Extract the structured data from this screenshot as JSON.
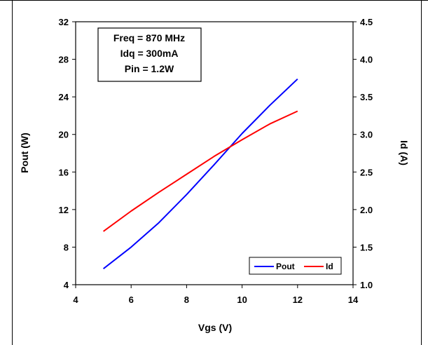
{
  "chart_data": {
    "type": "line",
    "xlabel": "Vgs (V)",
    "ylabel": "Pout (W)",
    "y2label": "Id (A)",
    "xlim": [
      4,
      14
    ],
    "ylim": [
      4,
      32
    ],
    "y2lim": [
      1.0,
      4.5
    ],
    "xticks": [
      "4",
      "6",
      "8",
      "10",
      "12",
      "14"
    ],
    "yticks": [
      "4",
      "8",
      "12",
      "16",
      "20",
      "24",
      "28",
      "32"
    ],
    "y2ticks": [
      "1.0",
      "1.5",
      "2.0",
      "2.5",
      "3.0",
      "3.5",
      "4.0",
      "4.5"
    ],
    "grid": false,
    "legend_position": "bottom-right",
    "annotation": [
      "Freq = 870 MHz",
      "Idq = 300mA",
      "Pin = 1.2W"
    ],
    "series": [
      {
        "name": "Pout",
        "axis": "left",
        "color": "#0000ff",
        "x": [
          5,
          6,
          7,
          8,
          9,
          10,
          11,
          12
        ],
        "values": [
          5.7,
          8.0,
          10.6,
          13.6,
          16.8,
          20.1,
          23.1,
          25.9
        ]
      },
      {
        "name": "Id",
        "axis": "right",
        "color": "#ff0000",
        "x": [
          5,
          6,
          7,
          8,
          9,
          10,
          11,
          12
        ],
        "values": [
          1.71,
          1.98,
          2.23,
          2.47,
          2.71,
          2.93,
          3.14,
          3.31
        ]
      }
    ]
  }
}
